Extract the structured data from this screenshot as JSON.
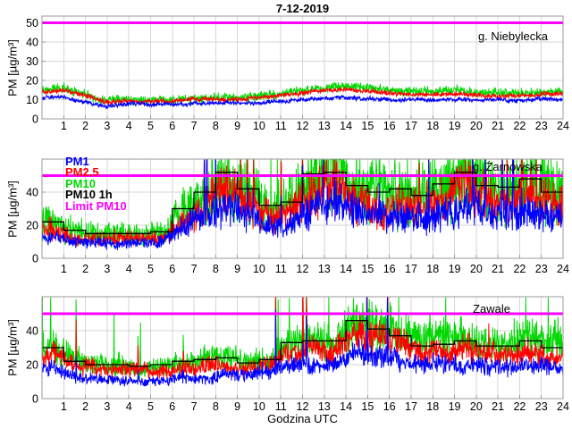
{
  "figure": {
    "title": "7-12-2019",
    "xlabel": "Godzina UTC",
    "ylabel": "PM [µg/m³]"
  },
  "legend": [
    {
      "label": "PM1",
      "color": "#0000ff"
    },
    {
      "label": "PM2.5",
      "color": "#ff0000"
    },
    {
      "label": "PM10",
      "color": "#00d800"
    },
    {
      "label": "PM10 1h",
      "color": "#000000"
    },
    {
      "label": "Limit PM10",
      "color": "#ff00ff"
    }
  ],
  "colors": {
    "pm1": "#0000ff",
    "pm25": "#ff0000",
    "pm10": "#00d800",
    "pm10_1h": "#000000",
    "limit": "#ff00ff",
    "grid": "#d6d6d6",
    "frame": "#9a9a9a",
    "background": "#ffffff"
  },
  "hours": [
    1,
    2,
    3,
    4,
    5,
    6,
    7,
    8,
    9,
    10,
    11,
    12,
    13,
    14,
    15,
    16,
    17,
    18,
    19,
    20,
    21,
    22,
    23,
    24
  ],
  "chart_data": [
    {
      "type": "line",
      "station": "g. Niebylecka",
      "xlim": [
        0,
        24
      ],
      "ylim": [
        0,
        53.5
      ],
      "y_ticks": [
        0,
        10,
        20,
        30,
        40,
        50
      ],
      "grid_y": [
        10,
        20,
        30,
        40,
        50
      ],
      "limit_value": 50,
      "noise": {
        "seed": 7,
        "shared_spike_p": 0,
        "shared_spike_p_early": 0,
        "early_until_hour": 0,
        "shared_spike_amp": 0
      },
      "series": [
        {
          "name": "PM10",
          "color": "#00d800",
          "sigma": 1.0,
          "hourly": [
            15,
            16,
            13,
            9,
            10,
            10,
            10,
            11,
            11,
            11,
            12,
            13,
            15,
            16,
            17,
            16,
            15,
            14.5,
            14,
            15,
            14.5,
            14,
            14,
            14,
            14
          ]
        },
        {
          "name": "PM2.5",
          "color": "#ff0000",
          "sigma": 0.5,
          "hourly": [
            14,
            14.5,
            12,
            8,
            9,
            9,
            9,
            10,
            10,
            10,
            11,
            12,
            13.5,
            14.5,
            15,
            14.5,
            13.5,
            13,
            12.5,
            13.5,
            13,
            12.5,
            12.5,
            13,
            13
          ]
        },
        {
          "name": "PM1",
          "color": "#0000ff",
          "sigma": 0.45,
          "hourly": [
            11,
            11.5,
            9,
            6.5,
            8,
            7.5,
            7.5,
            8,
            8,
            8,
            8.5,
            9,
            10,
            10.5,
            11,
            10.5,
            10,
            10,
            9.5,
            10.5,
            10,
            9.5,
            9.5,
            10,
            10
          ]
        }
      ]
    },
    {
      "type": "line",
      "station": "g. Żarnówska",
      "xlim": [
        0,
        24
      ],
      "ylim": [
        0,
        60
      ],
      "y_ticks": [
        0,
        20,
        40
      ],
      "grid_y": [
        20,
        40
      ],
      "limit_value": 50,
      "pm10_1h": [
        22,
        17,
        15,
        15,
        15,
        16,
        30,
        40,
        52,
        42,
        32,
        34,
        51,
        52,
        44,
        40,
        42,
        38,
        45,
        52,
        44,
        43,
        48,
        40
      ],
      "noise": {
        "seed": 12,
        "shared_spike_p": 0.022,
        "shared_spike_p_early": 0.004,
        "early_until_hour": 5.7,
        "shared_spike_amp": 2.4
      },
      "series": [
        {
          "name": "PM10",
          "color": "#00d800",
          "ratio": 1.0,
          "sigma": 0.2,
          "spike_p": 0.012,
          "spike_amp": 1.5,
          "shared_mult": 1.0
        },
        {
          "name": "PM2.5",
          "color": "#ff0000",
          "ratio": 0.78,
          "sigma": 0.16,
          "spike_p": 0.004,
          "spike_amp": 0.9,
          "shared_mult": 0.9
        },
        {
          "name": "PM1",
          "color": "#0000ff",
          "ratio": 0.6,
          "sigma": 0.15,
          "spike_p": 0.003,
          "spike_amp": 0.9,
          "shared_mult": 0.85
        }
      ]
    },
    {
      "type": "line",
      "station": "Zawale",
      "xlim": [
        0,
        24
      ],
      "ylim": [
        0,
        60
      ],
      "y_ticks": [
        0,
        20,
        40
      ],
      "grid_y": [
        20,
        40
      ],
      "limit_value": 50,
      "pm10_1h": [
        30,
        22,
        20,
        20,
        19,
        20,
        22,
        23,
        24,
        21,
        23,
        33,
        34,
        34,
        46,
        41,
        37,
        31,
        32,
        34,
        31,
        31,
        34,
        30
      ],
      "noise": {
        "seed": 2019,
        "shared_spike_p": 0.007,
        "shared_spike_p_early": 0.007,
        "early_until_hour": 0,
        "shared_spike_amp": 2.0
      },
      "series": [
        {
          "name": "PM10",
          "color": "#00d800",
          "ratio": 1.0,
          "sigma": 0.13,
          "spike_p": 0.006,
          "spike_amp": 1.4,
          "shared_mult": 1.0
        },
        {
          "name": "PM2.5",
          "color": "#ff0000",
          "ratio": 0.85,
          "sigma": 0.11,
          "spike_p": 0.002,
          "spike_amp": 0.7,
          "shared_mult": 0.9
        },
        {
          "name": "PM1",
          "color": "#0000ff",
          "ratio": 0.6,
          "sigma": 0.11,
          "spike_p": 0.001,
          "spike_amp": 0.6,
          "shared_mult": 0.8
        }
      ]
    }
  ]
}
